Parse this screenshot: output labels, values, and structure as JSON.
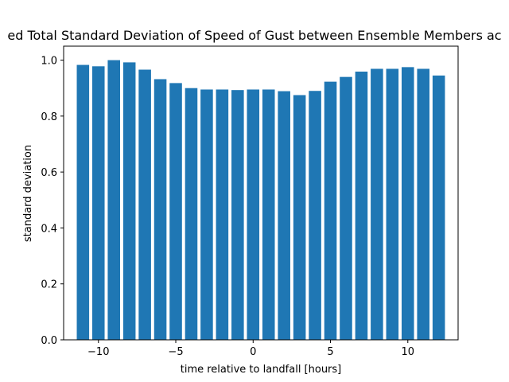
{
  "chart_data": {
    "type": "bar",
    "title": "ed Total Standard Deviation of Speed of Gust between Ensemble Members ac",
    "xlabel": "time relative to landfall [hours]",
    "ylabel": "standard deviation",
    "x": [
      -11,
      -10,
      -9,
      -8,
      -7,
      -6,
      -5,
      -4,
      -3,
      -2,
      -1,
      0,
      1,
      2,
      3,
      4,
      5,
      6,
      7,
      8,
      9,
      10,
      11,
      12
    ],
    "values": [
      0.983,
      0.978,
      1.0,
      0.992,
      0.966,
      0.932,
      0.918,
      0.9,
      0.895,
      0.895,
      0.893,
      0.895,
      0.895,
      0.889,
      0.875,
      0.89,
      0.923,
      0.94,
      0.959,
      0.969,
      0.969,
      0.975,
      0.969,
      0.945
    ],
    "xlim": [
      -12.25,
      13.25
    ],
    "ylim": [
      0,
      1.05
    ],
    "x_ticks": [
      -10,
      -5,
      0,
      5,
      10
    ],
    "x_tick_labels": [
      "−10",
      "−5",
      "0",
      "5",
      "10"
    ],
    "y_ticks": [
      0.0,
      0.2,
      0.4,
      0.6,
      0.8,
      1.0
    ],
    "y_tick_labels": [
      "0.0",
      "0.2",
      "0.4",
      "0.6",
      "0.8",
      "1.0"
    ],
    "grid": false,
    "bar_color": "#1f77b4"
  }
}
